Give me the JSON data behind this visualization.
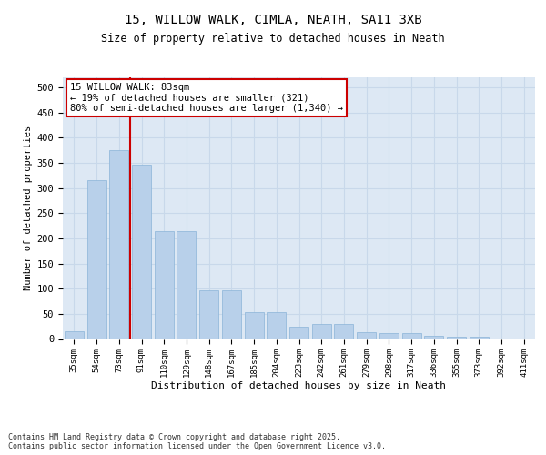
{
  "title1": "15, WILLOW WALK, CIMLA, NEATH, SA11 3XB",
  "title2": "Size of property relative to detached houses in Neath",
  "xlabel": "Distribution of detached houses by size in Neath",
  "ylabel": "Number of detached properties",
  "bar_labels": [
    "35sqm",
    "54sqm",
    "73sqm",
    "91sqm",
    "110sqm",
    "129sqm",
    "148sqm",
    "167sqm",
    "185sqm",
    "204sqm",
    "223sqm",
    "242sqm",
    "261sqm",
    "279sqm",
    "298sqm",
    "317sqm",
    "336sqm",
    "355sqm",
    "373sqm",
    "392sqm",
    "411sqm"
  ],
  "bar_values": [
    16,
    316,
    375,
    346,
    215,
    215,
    97,
    97,
    54,
    54,
    25,
    30,
    30,
    13,
    11,
    11,
    6,
    5,
    5,
    1,
    1
  ],
  "bar_color": "#b8d0ea",
  "bar_edge_color": "#8ab4d8",
  "grid_color": "#c8d8ea",
  "bg_color": "#dde8f4",
  "red_line_x": 2.5,
  "annotation_text": "15 WILLOW WALK: 83sqm\n← 19% of detached houses are smaller (321)\n80% of semi-detached houses are larger (1,340) →",
  "annotation_box_color": "#ffffff",
  "annotation_box_edge": "#cc0000",
  "footer_text": "Contains HM Land Registry data © Crown copyright and database right 2025.\nContains public sector information licensed under the Open Government Licence v3.0.",
  "ylim": [
    0,
    520
  ],
  "yticks": [
    0,
    50,
    100,
    150,
    200,
    250,
    300,
    350,
    400,
    450,
    500
  ]
}
